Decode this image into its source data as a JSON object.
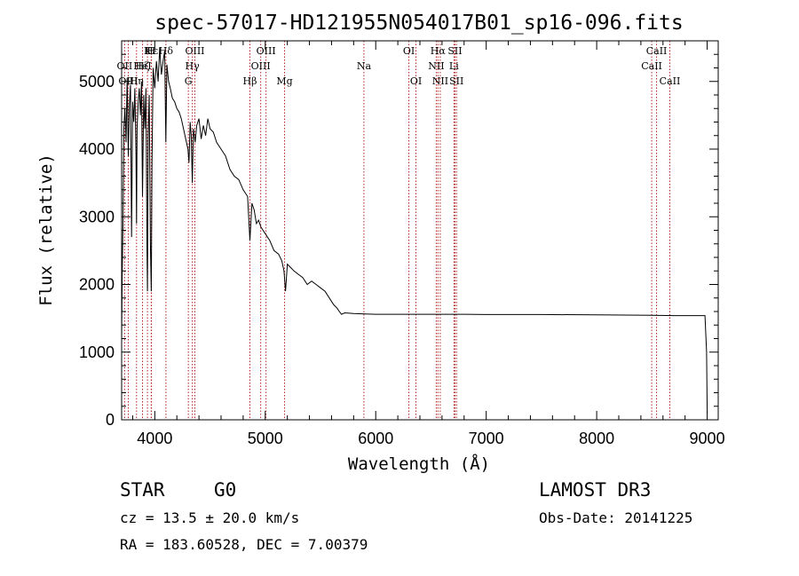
{
  "chart_data": {
    "type": "line",
    "title": "spec-57017-HD121955N054017B01_sp16-096.fits",
    "xlabel": "Wavelength (Å)",
    "ylabel": "Flux (relative)",
    "xlim": [
      3700,
      9100
    ],
    "ylim": [
      0,
      5600
    ],
    "x_ticks": [
      4000,
      5000,
      6000,
      7000,
      8000,
      9000
    ],
    "y_ticks": [
      0,
      1000,
      2000,
      3000,
      4000,
      5000
    ],
    "x_tick_labels": [
      "4000",
      "5000",
      "6000",
      "7000",
      "8000",
      "9000"
    ],
    "y_tick_labels": [
      "0",
      "1000",
      "2000",
      "3000",
      "4000",
      "5000"
    ],
    "spectrum": {
      "name": "flux",
      "x": [
        3700,
        3705,
        3712,
        3720,
        3730,
        3740,
        3750,
        3760,
        3770,
        3780,
        3790,
        3800,
        3810,
        3820,
        3830,
        3835,
        3840,
        3850,
        3860,
        3870,
        3880,
        3889,
        3900,
        3910,
        3920,
        3930,
        3934,
        3940,
        3950,
        3960,
        3968,
        3975,
        3985,
        4000,
        4015,
        4030,
        4045,
        4060,
        4075,
        4090,
        4100,
        4110,
        4125,
        4140,
        4160,
        4180,
        4200,
        4220,
        4240,
        4260,
        4280,
        4300,
        4310,
        4320,
        4330,
        4340,
        4350,
        4365,
        4380,
        4400,
        4420,
        4440,
        4460,
        4480,
        4500,
        4530,
        4560,
        4600,
        4640,
        4680,
        4720,
        4760,
        4800,
        4840,
        4861,
        4880,
        4900,
        4920,
        4940,
        4960,
        4980,
        5000,
        5040,
        5080,
        5120,
        5150,
        5170,
        5183,
        5200,
        5230,
        5260,
        5300,
        5340,
        5380,
        5420,
        5460,
        5500,
        5540,
        5580,
        5620,
        5650,
        5670,
        5690,
        5720,
        5800,
        5900,
        6000,
        6200,
        6400,
        6600,
        6800,
        7000,
        7500,
        8000,
        8500,
        8700,
        8900,
        8980,
        8995,
        9000
      ],
      "y": [
        1200,
        2100,
        2900,
        4300,
        4600,
        4100,
        5050,
        3900,
        4650,
        4950,
        2700,
        4700,
        4400,
        4900,
        3900,
        2900,
        4300,
        4700,
        4900,
        4500,
        5000,
        3300,
        4800,
        4300,
        4900,
        2500,
        1900,
        4200,
        4800,
        2600,
        1900,
        3800,
        5200,
        4900,
        5300,
        5000,
        5500,
        5100,
        5300,
        5450,
        4100,
        5250,
        5000,
        4900,
        4750,
        4700,
        4600,
        4550,
        4450,
        4300,
        4150,
        4000,
        3800,
        4400,
        4200,
        3500,
        4300,
        4100,
        4350,
        4450,
        4150,
        4350,
        4200,
        4450,
        4300,
        4250,
        4100,
        4000,
        3900,
        3700,
        3600,
        3550,
        3400,
        3300,
        2650,
        3200,
        3100,
        2900,
        2950,
        2850,
        2800,
        2750,
        2650,
        2500,
        2450,
        2350,
        2200,
        1900,
        2300,
        2250,
        2200,
        2150,
        2100,
        2000,
        2050,
        2000,
        1950,
        1900,
        1800,
        1700,
        1650,
        1600,
        1560,
        1580,
        1570,
        1565,
        1560,
        1560,
        1560,
        1560,
        1560,
        1555,
        1555,
        1550,
        1545,
        1540,
        1540,
        1540,
        1000,
        100
      ]
    },
    "spectral_lines": [
      {
        "label": "Hδ",
        "wavelength": 4101,
        "row": 0
      },
      {
        "label": "OII",
        "wavelength": 3727,
        "row": 1
      },
      {
        "label": "OIII",
        "wavelength": 3760,
        "row": 2
      },
      {
        "label": "Hε",
        "wavelength": 3970,
        "row": 0
      },
      {
        "label": "HeI",
        "wavelength": 3889,
        "row": 1
      },
      {
        "label": "Hη",
        "wavelength": 3835,
        "row": 2
      },
      {
        "label": "K",
        "wavelength": 3934,
        "row": 0
      },
      {
        "label": "Hζ",
        "wavelength": 3889,
        "row": 1
      },
      {
        "label": "H",
        "wavelength": 3968,
        "row": 0
      },
      {
        "label": "OIII",
        "wavelength": 4363,
        "row": 0
      },
      {
        "label": "Hγ",
        "wavelength": 4340,
        "row": 1
      },
      {
        "label": "G",
        "wavelength": 4304,
        "row": 2
      },
      {
        "label": "Hβ",
        "wavelength": 4861,
        "row": 2
      },
      {
        "label": "OIII",
        "wavelength": 5007,
        "row": 0
      },
      {
        "label": "OIII",
        "wavelength": 4959,
        "row": 1
      },
      {
        "label": "Mg",
        "wavelength": 5175,
        "row": 2
      },
      {
        "label": "Na",
        "wavelength": 5893,
        "row": 1
      },
      {
        "label": "OI",
        "wavelength": 6300,
        "row": 0
      },
      {
        "label": "OI",
        "wavelength": 6364,
        "row": 2
      },
      {
        "label": "Hα",
        "wavelength": 6563,
        "row": 0
      },
      {
        "label": "NII",
        "wavelength": 6548,
        "row": 1
      },
      {
        "label": "NII",
        "wavelength": 6584,
        "row": 2
      },
      {
        "label": "SII",
        "wavelength": 6717,
        "row": 0
      },
      {
        "label": "Li",
        "wavelength": 6708,
        "row": 1
      },
      {
        "label": "SII",
        "wavelength": 6731,
        "row": 2
      },
      {
        "label": "CaII",
        "wavelength": 8542,
        "row": 0
      },
      {
        "label": "CaII",
        "wavelength": 8498,
        "row": 1
      },
      {
        "label": "CaII",
        "wavelength": 8662,
        "row": 2
      }
    ],
    "colors": {
      "spectrum": "#000000",
      "lines": "#b22222",
      "axes": "#000000"
    }
  },
  "info": {
    "class": "STAR",
    "subclass": "G0",
    "survey": "LAMOST DR3",
    "cz": "cz = 13.5 ± 20.0 km/s",
    "obs_date": "Obs-Date: 20141225",
    "coords": "RA = 183.60528, DEC =    7.00379"
  }
}
